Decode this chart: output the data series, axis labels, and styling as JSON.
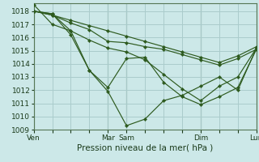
{
  "title": "",
  "xlabel": "Pression niveau de la mer( hPa )",
  "ylabel": "",
  "bg_color": "#cce8e8",
  "grid_color": "#aacccc",
  "line_color": "#2d5a1e",
  "marker_color": "#2d5a1e",
  "ylim": [
    1009,
    1018.6
  ],
  "yticks": [
    1009,
    1010,
    1011,
    1012,
    1013,
    1014,
    1015,
    1016,
    1017,
    1018
  ],
  "xtick_labels": [
    "Ven",
    "",
    "Mar",
    "Sam",
    "",
    "",
    "Dim",
    "",
    "Lun"
  ],
  "xtick_positions": [
    0,
    2,
    4,
    5,
    6,
    7,
    9,
    11,
    12
  ],
  "vline_positions": [
    0,
    4,
    5,
    9,
    12
  ],
  "series": [
    [
      1018.0,
      1017.8,
      1016.2,
      1013.5,
      1012.2,
      1014.4,
      1014.5,
      1012.6,
      1011.5,
      1010.9,
      1011.5,
      1012.2,
      1015.1
    ],
    [
      1018.5,
      1017.0,
      1016.5,
      1015.8,
      1015.2,
      1014.9,
      1014.3,
      1013.2,
      1012.1,
      1011.2,
      1012.3,
      1013.0,
      1015.2
    ],
    [
      1018.0,
      1017.7,
      1017.3,
      1016.9,
      1016.5,
      1016.1,
      1015.7,
      1015.3,
      1014.9,
      1014.5,
      1014.1,
      1014.6,
      1015.3
    ],
    [
      1018.0,
      1017.8,
      1016.5,
      1013.5,
      1011.9,
      1009.3,
      1009.8,
      1011.2,
      1011.6,
      1012.3,
      1013.0,
      1012.0,
      1015.2
    ],
    [
      1018.0,
      1017.7,
      1017.1,
      1016.6,
      1015.7,
      1015.6,
      1015.3,
      1015.1,
      1014.7,
      1014.3,
      1013.9,
      1014.4,
      1015.1
    ]
  ],
  "x_positions": [
    0,
    1,
    2,
    3,
    4,
    5,
    6,
    7,
    8,
    9,
    10,
    11,
    12
  ]
}
